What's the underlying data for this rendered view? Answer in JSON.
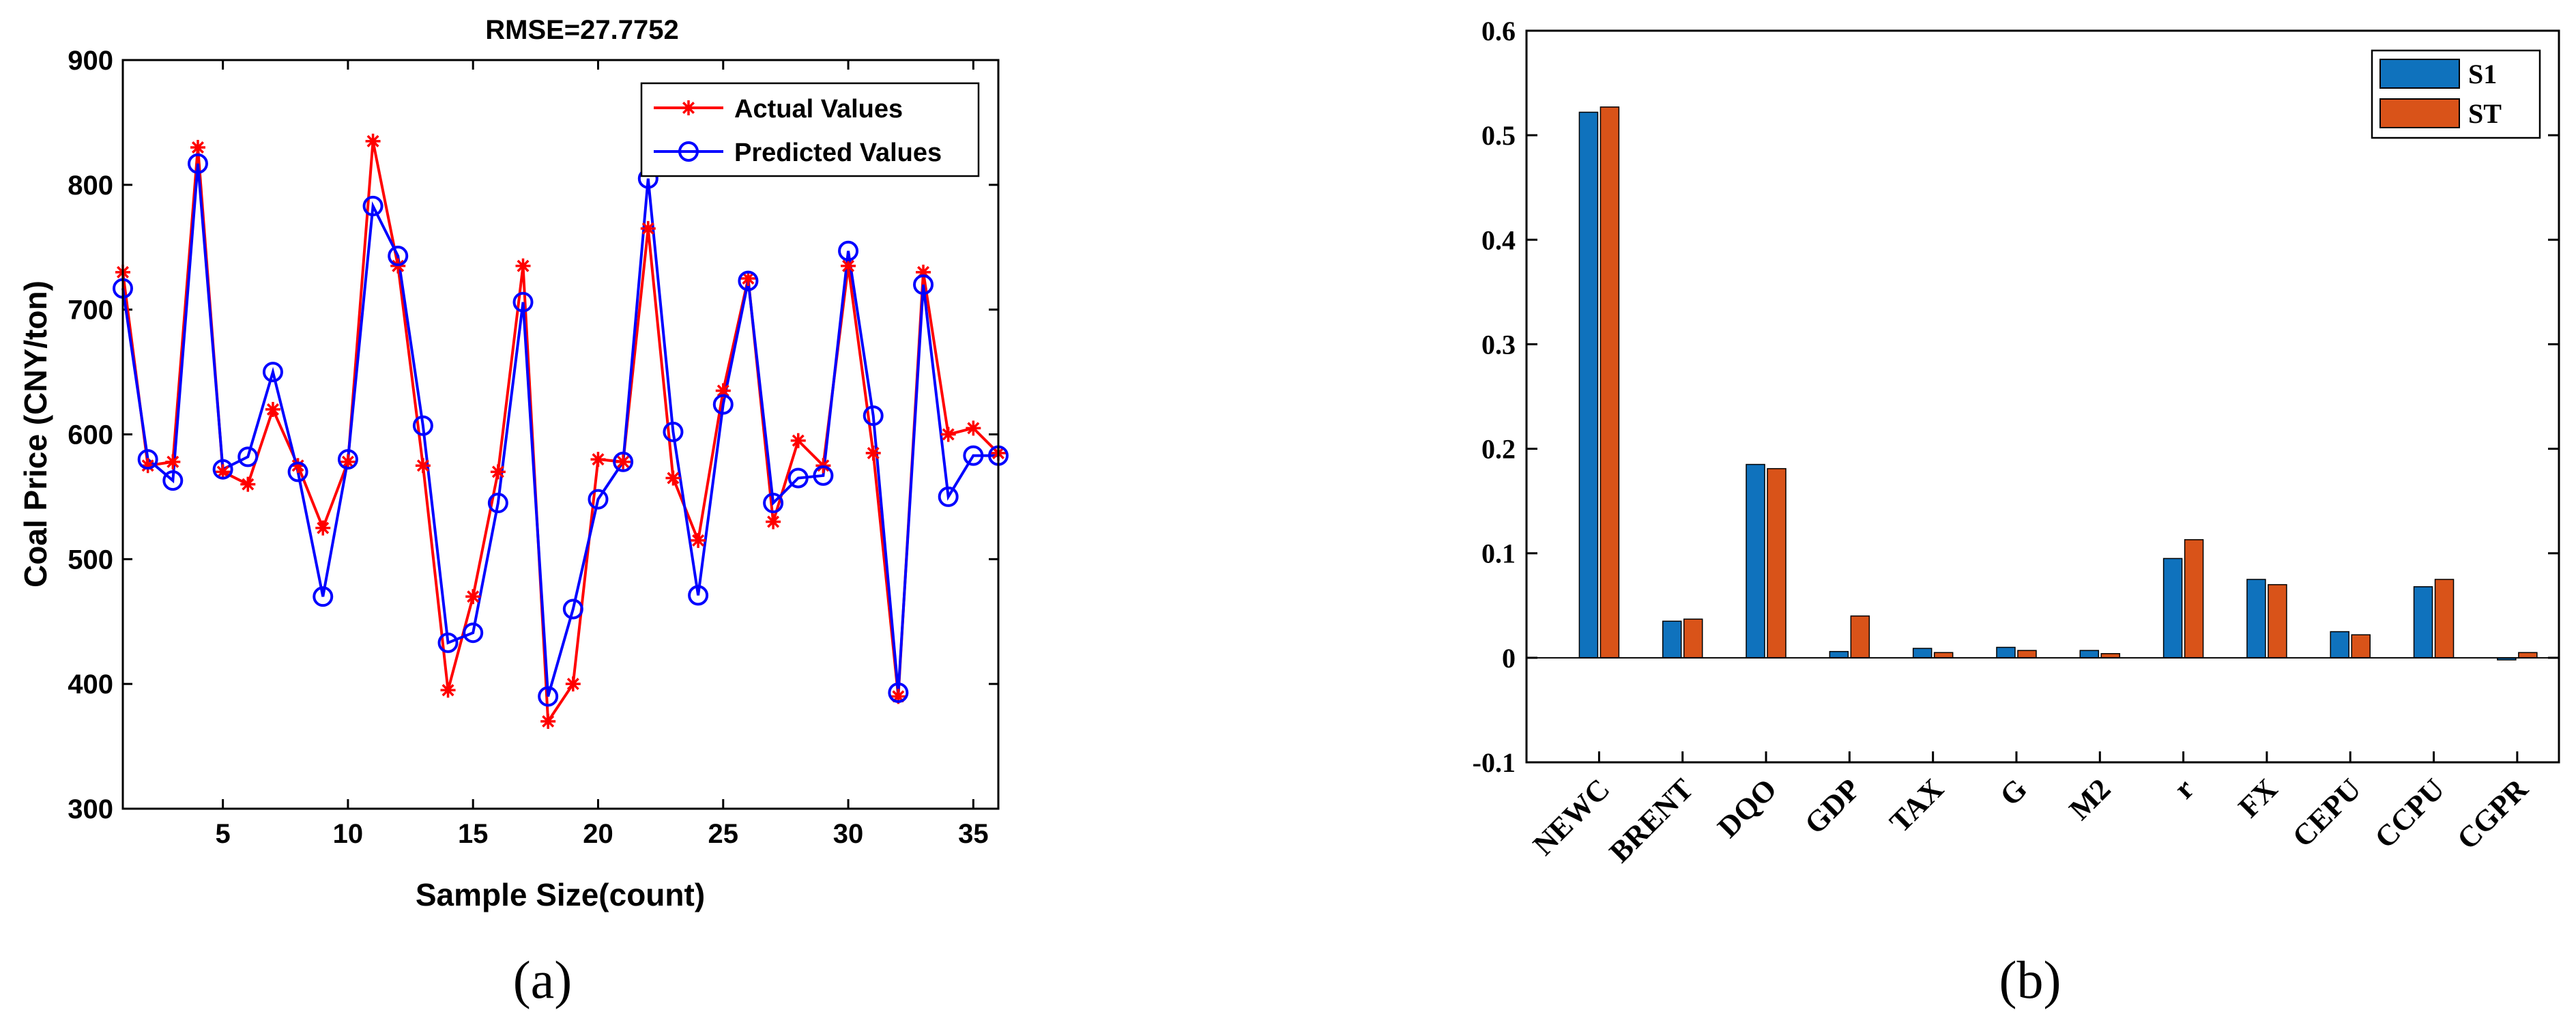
{
  "panels": {
    "a_label": "(a)",
    "b_label": "(b)"
  },
  "chart_data": [
    {
      "id": "a",
      "type": "line",
      "title": "RMSE=27.7752",
      "xlabel": "Sample Size(count)",
      "ylabel": "Coal Price (CNY/ton)",
      "xlim": [
        1,
        36
      ],
      "ylim": [
        300,
        900
      ],
      "xticks": [
        5,
        10,
        15,
        20,
        25,
        30,
        35
      ],
      "yticks": [
        300,
        400,
        500,
        600,
        700,
        800,
        900
      ],
      "legend_position": "top-right",
      "x": [
        1,
        2,
        3,
        4,
        5,
        6,
        7,
        8,
        9,
        10,
        11,
        12,
        13,
        14,
        15,
        16,
        17,
        18,
        19,
        20,
        21,
        22,
        23,
        24,
        25,
        26,
        27,
        28,
        29,
        30,
        31,
        32,
        33,
        34,
        35,
        36
      ],
      "series": [
        {
          "name": "Actual Values",
          "color": "#ff0000",
          "marker": "asterisk",
          "values": [
            730,
            575,
            578,
            830,
            570,
            560,
            620,
            575,
            525,
            578,
            835,
            735,
            575,
            395,
            470,
            570,
            735,
            370,
            400,
            580,
            578,
            765,
            565,
            515,
            635,
            725,
            530,
            595,
            575,
            735,
            585,
            390,
            730,
            600,
            605,
            585
          ]
        },
        {
          "name": "Predicted Values",
          "color": "#0000ff",
          "marker": "circle",
          "values": [
            717,
            580,
            563,
            817,
            572,
            582,
            650,
            570,
            470,
            580,
            783,
            743,
            607,
            433,
            441,
            545,
            706,
            390,
            460,
            548,
            578,
            805,
            602,
            471,
            624,
            723,
            545,
            565,
            567,
            747,
            615,
            393,
            720,
            550,
            583,
            583
          ]
        }
      ]
    },
    {
      "id": "b",
      "type": "bar",
      "title": "",
      "xlabel": "",
      "ylabel": "",
      "ylim": [
        -0.1,
        0.6
      ],
      "yticks": [
        -0.1,
        0,
        0.1,
        0.2,
        0.3,
        0.4,
        0.5,
        0.6
      ],
      "ytick_labels": [
        "-0.1",
        "0",
        "0.1",
        "0.2",
        "0.3",
        "0.4",
        "0.5",
        "0.6"
      ],
      "legend_position": "top-right",
      "categories": [
        "NEWC",
        "BRENT",
        "DQO",
        "GDP",
        "TAX",
        "G",
        "M2",
        "r",
        "FX",
        "CEPU",
        "CCPU",
        "CGPR"
      ],
      "series": [
        {
          "name": "S1",
          "color": "#0f72bd",
          "values": [
            0.522,
            0.035,
            0.185,
            0.006,
            0.009,
            0.01,
            0.007,
            0.095,
            0.075,
            0.025,
            0.068,
            -0.002
          ]
        },
        {
          "name": "ST",
          "color": "#d95319",
          "values": [
            0.527,
            0.037,
            0.181,
            0.04,
            0.005,
            0.007,
            0.004,
            0.113,
            0.07,
            0.022,
            0.075,
            0.005
          ]
        }
      ]
    }
  ]
}
